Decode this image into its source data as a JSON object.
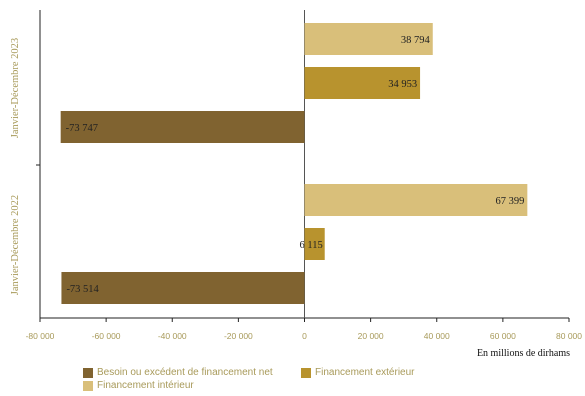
{
  "chart_data": {
    "type": "bar",
    "orientation": "horizontal",
    "categories": [
      "Janvier-Décembre 2023",
      "Janvier-Décembre 2022"
    ],
    "series": [
      {
        "name": "Financement intérieur",
        "values": [
          38794,
          67399
        ],
        "labels": [
          "38 794",
          "67 399"
        ],
        "color": "#d9bf7a"
      },
      {
        "name": "Financement extérieur",
        "values": [
          34953,
          6115
        ],
        "labels": [
          "34 953",
          "6 115"
        ],
        "color": "#b8932e"
      },
      {
        "name": "Besoin ou excédent de financement net",
        "values": [
          -73747,
          -73514
        ],
        "labels": [
          "-73 747",
          "-73 514"
        ],
        "color": "#806330"
      }
    ],
    "xlim": [
      -80000,
      80000
    ],
    "xticks": [
      -80000,
      -60000,
      -40000,
      -20000,
      0,
      20000,
      40000,
      60000,
      80000
    ],
    "xtick_labels": [
      "-80 000",
      "-60 000",
      "-40 000",
      "-20 000",
      "0",
      "20 000",
      "40 000",
      "60 000",
      "80 000"
    ],
    "xlabel": "En millions de dirhams",
    "legend": [
      {
        "name": "Besoin ou excédent de financement net",
        "color": "#806330"
      },
      {
        "name": "Financement extérieur",
        "color": "#b8932e"
      },
      {
        "name": "Financement intérieur",
        "color": "#d9bf7a"
      }
    ],
    "legend_position": "bottom",
    "grid": false
  }
}
